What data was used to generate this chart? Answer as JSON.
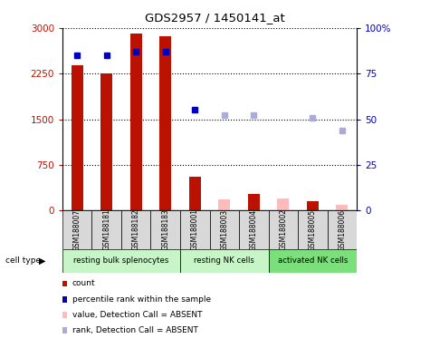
{
  "title": "GDS2957 / 1450141_at",
  "samples": [
    "GSM188007",
    "GSM188181",
    "GSM188182",
    "GSM188183",
    "GSM188001",
    "GSM188003",
    "GSM188004",
    "GSM188002",
    "GSM188005",
    "GSM188006"
  ],
  "groups": [
    {
      "label": "resting bulk splenocytes",
      "start": 0,
      "end": 3,
      "color": "#c8f5c8"
    },
    {
      "label": "resting NK cells",
      "start": 4,
      "end": 6,
      "color": "#c8f5c8"
    },
    {
      "label": "activated NK cells",
      "start": 7,
      "end": 9,
      "color": "#7be07b"
    }
  ],
  "count_present": [
    2380,
    2250,
    2900,
    2860,
    560,
    null,
    280,
    null,
    150,
    null
  ],
  "count_absent": [
    null,
    null,
    null,
    null,
    null,
    190,
    null,
    200,
    null,
    95
  ],
  "rank_present": [
    85,
    85,
    87,
    87,
    55,
    null,
    null,
    null,
    null,
    null
  ],
  "rank_absent": [
    null,
    null,
    null,
    null,
    null,
    52,
    52,
    null,
    51,
    44
  ],
  "ylim_left": [
    0,
    3000
  ],
  "ylim_right": [
    0,
    100
  ],
  "yticks_left": [
    0,
    750,
    1500,
    2250,
    3000
  ],
  "yticks_left_labels": [
    "0",
    "750",
    "1500",
    "2250",
    "3000"
  ],
  "yticks_right": [
    0,
    25,
    50,
    75,
    100
  ],
  "yticks_right_labels": [
    "0",
    "25",
    "50",
    "75",
    "100%"
  ],
  "bar_color_present": "#bb1100",
  "bar_color_absent": "#ffbbbb",
  "dot_color_present": "#0000bb",
  "dot_color_absent": "#aaaadd",
  "legend_items": [
    {
      "label": "count",
      "color": "#bb1100"
    },
    {
      "label": "percentile rank within the sample",
      "color": "#0000bb"
    },
    {
      "label": "value, Detection Call = ABSENT",
      "color": "#ffbbbb"
    },
    {
      "label": "rank, Detection Call = ABSENT",
      "color": "#aaaadd"
    }
  ]
}
